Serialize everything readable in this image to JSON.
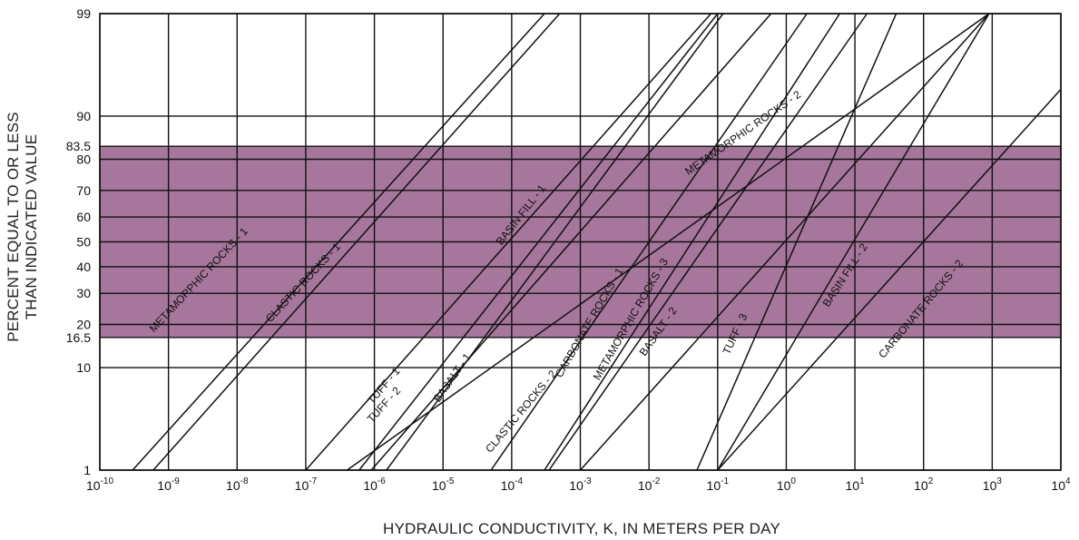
{
  "chart_data": {
    "type": "line",
    "xlabel": "HYDRAULIC CONDUCTIVITY, K, IN METERS PER DAY",
    "ylabel_lines": [
      "PERCENT EQUAL TO OR LESS",
      "THAN INDICATED VALUE"
    ],
    "x_scale": "log10",
    "y_scale": "probability",
    "xlim": [
      1e-10,
      10000
    ],
    "ylim": [
      1,
      99
    ],
    "x_ticks": [
      {
        "base": "10",
        "exp": "-10"
      },
      {
        "base": "10",
        "exp": "-9"
      },
      {
        "base": "10",
        "exp": "-8"
      },
      {
        "base": "10",
        "exp": "-7"
      },
      {
        "base": "10",
        "exp": "-6"
      },
      {
        "base": "10",
        "exp": "-5"
      },
      {
        "base": "10",
        "exp": "-4"
      },
      {
        "base": "10",
        "exp": "-3"
      },
      {
        "base": "10",
        "exp": "-2"
      },
      {
        "base": "10",
        "exp": "-1"
      },
      {
        "base": "10",
        "exp": "0"
      },
      {
        "base": "10",
        "exp": "1"
      },
      {
        "base": "10",
        "exp": "2"
      },
      {
        "base": "10",
        "exp": "3"
      },
      {
        "base": "10",
        "exp": "4"
      }
    ],
    "y_ticks": [
      "1",
      "10",
      "16.5",
      "20",
      "30",
      "40",
      "50",
      "60",
      "70",
      "80",
      "83.5",
      "90",
      "99"
    ],
    "shaded_band": {
      "from_percent": 16.5,
      "to_percent": 83.5,
      "color": "#8e4f80"
    },
    "grid": true,
    "series": [
      {
        "name": "METAMORPHIC ROCKS - 1",
        "x": [
          3e-10,
          0.0003
        ],
        "y": [
          1,
          99
        ]
      },
      {
        "name": "CLASTIC ROCKS - 1",
        "x": [
          6e-10,
          0.0005
        ],
        "y": [
          1,
          99
        ]
      },
      {
        "name": "TUFF - 1",
        "x": [
          1e-07,
          0.08
        ],
        "y": [
          1,
          99
        ]
      },
      {
        "name": "TUFF - 2",
        "x": [
          6e-07,
          0.1
        ],
        "y": [
          1,
          99
        ]
      },
      {
        "name": "BASIN FILL - 1",
        "x": [
          9e-07,
          0.6
        ],
        "y": [
          1,
          99
        ]
      },
      {
        "name": "BASALT - 1",
        "x": [
          1.5e-06,
          0.12
        ],
        "y": [
          1,
          99
        ]
      },
      {
        "name": "CARBONATE ROCKS - 1",
        "x": [
          5e-05,
          2
        ],
        "y": [
          1,
          99
        ]
      },
      {
        "name": "METAMORPHIC ROCKS - 2",
        "x": [
          4e-07,
          900
        ],
        "y": [
          1,
          99
        ]
      },
      {
        "name": "METAMORPHIC ROCKS - 3",
        "x": [
          0.0003,
          6
        ],
        "y": [
          1,
          99
        ]
      },
      {
        "name": "CLASTIC ROCKS - 2",
        "x": [
          0.00035,
          15
        ],
        "y": [
          1,
          99
        ]
      },
      {
        "name": "BASALT - 2",
        "x": [
          0.001,
          900
        ],
        "y": [
          1,
          99
        ]
      },
      {
        "name": "TUFF - 3",
        "x": [
          0.05,
          40
        ],
        "y": [
          1,
          99
        ]
      },
      {
        "name": "BASIN FILL - 2",
        "x": [
          0.1,
          900
        ],
        "y": [
          1,
          99
        ]
      },
      {
        "name": "CARBONATE ROCKS - 2",
        "x": [
          0.1,
          10000
        ],
        "y": [
          1,
          94
        ]
      }
    ],
    "annotations": [
      {
        "text": "METAMORPHIC ROCKS - 1",
        "x": 3e-09,
        "y": 34,
        "rotate": -47
      },
      {
        "text": "CLASTIC ROCKS - 1",
        "x": 1e-07,
        "y": 33,
        "rotate": -47
      },
      {
        "text": "BASIN FILL - 1",
        "x": 0.00015,
        "y": 60,
        "rotate": -52
      },
      {
        "text": "CARBONATE ROCKS - 1",
        "x": 0.0015,
        "y": 20,
        "rotate": -60
      },
      {
        "text": "METAMORPHIC ROCKS - 3",
        "x": 0.006,
        "y": 21,
        "rotate": -60
      },
      {
        "text": "METAMORPHIC ROCKS - 2",
        "x": 0.25,
        "y": 86,
        "rotate": -35
      },
      {
        "text": "BASALT - 2",
        "x": 0.015,
        "y": 17.5,
        "rotate": -55
      },
      {
        "text": "TUFF - 3",
        "x": 0.2,
        "y": 17,
        "rotate": -65
      },
      {
        "text": "BASIN FILL - 2",
        "x": 8,
        "y": 36,
        "rotate": -57
      },
      {
        "text": "CARBONATE ROCKS - 2",
        "x": 100,
        "y": 24,
        "rotate": -50
      },
      {
        "text": "TUFF - 1",
        "x": 1.5e-06,
        "y": 6.8,
        "rotate": -50
      },
      {
        "text": "TUFF - 2",
        "x": 1.5e-06,
        "y": 4.6,
        "rotate": -48
      },
      {
        "text": "BASALT - 1",
        "x": 1.5e-05,
        "y": 8,
        "rotate": -55
      },
      {
        "text": "CLASTIC ROCKS - 2",
        "x": 0.00015,
        "y": 4,
        "rotate": -50
      }
    ]
  }
}
